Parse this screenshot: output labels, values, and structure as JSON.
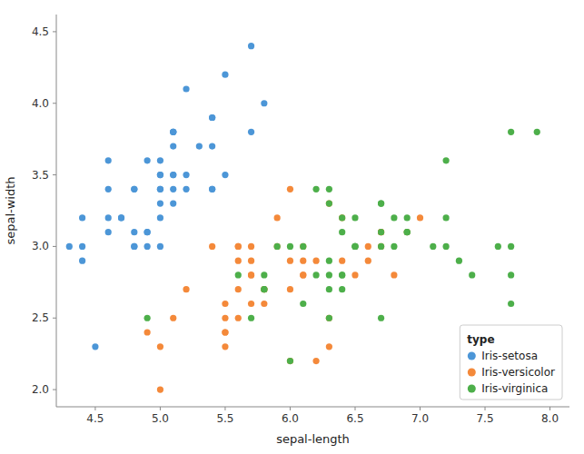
{
  "chart_data": {
    "type": "scatter",
    "xlabel": "sepal-length",
    "ylabel": "sepal-width",
    "legend_title": "type",
    "xlim": [
      4.2,
      8.15
    ],
    "ylim": [
      1.88,
      4.62
    ],
    "xticks": [
      4.5,
      {
        "value": 5.0,
        "label": "5.0"
      },
      5.5,
      {
        "value": 6.0,
        "label": "6.0"
      },
      6.5,
      {
        "value": 7.0,
        "label": "7.0"
      },
      7.5,
      {
        "value": 8.0,
        "label": "8.0"
      }
    ],
    "yticks": [
      {
        "value": 2.0,
        "label": "2.0"
      },
      2.5,
      {
        "value": 3.0,
        "label": "3.0"
      },
      3.5,
      {
        "value": 4.0,
        "label": "4.0"
      },
      4.5
    ],
    "grid": false,
    "legend": "lower right",
    "series": [
      {
        "name": "Iris-setosa",
        "color": "#4c96d7",
        "x": [
          5.1,
          4.9,
          4.7,
          4.6,
          5.0,
          5.4,
          4.6,
          5.0,
          4.4,
          4.9,
          5.4,
          4.8,
          4.8,
          4.3,
          5.8,
          5.7,
          5.4,
          5.1,
          5.7,
          5.1,
          5.4,
          5.1,
          4.6,
          5.1,
          4.8,
          5.0,
          5.0,
          5.2,
          5.2,
          4.7,
          4.8,
          5.4,
          5.2,
          5.5,
          4.9,
          5.0,
          5.5,
          4.9,
          4.4,
          5.1,
          5.0,
          4.5,
          4.4,
          5.0,
          5.1,
          4.8,
          5.1,
          4.6,
          5.3,
          5.0
        ],
        "values": [
          3.5,
          3.0,
          3.2,
          3.1,
          3.6,
          3.9,
          3.4,
          3.4,
          2.9,
          3.1,
          3.7,
          3.4,
          3.0,
          3.0,
          4.0,
          4.4,
          3.9,
          3.5,
          3.8,
          3.8,
          3.4,
          3.7,
          3.6,
          3.3,
          3.4,
          3.0,
          3.4,
          3.5,
          3.4,
          3.2,
          3.1,
          3.4,
          4.1,
          4.2,
          3.1,
          3.2,
          3.5,
          3.6,
          3.0,
          3.4,
          3.5,
          2.3,
          3.2,
          3.5,
          3.8,
          3.0,
          3.8,
          3.2,
          3.7,
          3.3
        ]
      },
      {
        "name": "Iris-versicolor",
        "color": "#f4893a",
        "x": [
          7.0,
          6.4,
          6.9,
          5.5,
          6.5,
          5.7,
          6.3,
          4.9,
          6.6,
          5.2,
          5.0,
          5.9,
          6.0,
          6.1,
          5.6,
          6.7,
          5.6,
          5.8,
          6.2,
          5.6,
          5.9,
          6.1,
          6.3,
          6.1,
          6.4,
          6.6,
          6.8,
          6.7,
          6.0,
          5.7,
          5.5,
          5.5,
          5.8,
          6.0,
          5.4,
          6.0,
          6.7,
          6.3,
          5.6,
          5.5,
          5.5,
          6.1,
          5.8,
          5.0,
          5.6,
          5.7,
          5.7,
          6.2,
          5.1,
          5.7
        ],
        "values": [
          3.2,
          3.2,
          3.1,
          2.3,
          2.8,
          2.8,
          3.3,
          2.4,
          2.9,
          2.7,
          2.0,
          3.0,
          2.2,
          2.9,
          2.9,
          3.1,
          3.0,
          2.7,
          2.2,
          2.5,
          3.2,
          2.8,
          2.5,
          2.8,
          2.9,
          3.0,
          2.8,
          3.0,
          2.9,
          2.6,
          2.4,
          2.4,
          2.7,
          2.7,
          3.0,
          3.4,
          3.1,
          2.3,
          3.0,
          2.5,
          2.6,
          3.0,
          2.6,
          2.3,
          2.7,
          3.0,
          2.9,
          2.9,
          2.5,
          2.8
        ]
      },
      {
        "name": "Iris-virginica",
        "color": "#4daf4a",
        "x": [
          6.3,
          5.8,
          7.1,
          6.3,
          6.5,
          7.6,
          4.9,
          7.3,
          6.7,
          7.2,
          6.5,
          6.4,
          6.8,
          5.7,
          5.8,
          6.4,
          6.5,
          7.7,
          7.7,
          6.0,
          6.9,
          5.6,
          7.7,
          6.3,
          6.7,
          7.2,
          6.2,
          6.1,
          6.4,
          7.2,
          7.4,
          7.9,
          6.4,
          6.3,
          6.1,
          7.7,
          6.3,
          6.4,
          6.0,
          6.9,
          6.7,
          6.9,
          5.8,
          6.8,
          6.7,
          6.7,
          6.3,
          6.5,
          6.2,
          5.9
        ],
        "values": [
          3.3,
          2.7,
          3.0,
          2.9,
          3.0,
          3.0,
          2.5,
          2.9,
          2.5,
          3.6,
          3.2,
          2.7,
          3.0,
          2.5,
          2.8,
          3.2,
          3.0,
          3.8,
          2.6,
          2.2,
          3.2,
          2.8,
          2.8,
          2.7,
          3.3,
          3.2,
          2.8,
          3.0,
          2.8,
          3.0,
          2.8,
          3.8,
          2.8,
          2.8,
          2.6,
          3.0,
          3.4,
          3.1,
          3.0,
          3.1,
          3.1,
          3.1,
          2.7,
          3.2,
          3.3,
          3.0,
          2.5,
          3.0,
          3.4,
          3.0
        ]
      }
    ]
  }
}
